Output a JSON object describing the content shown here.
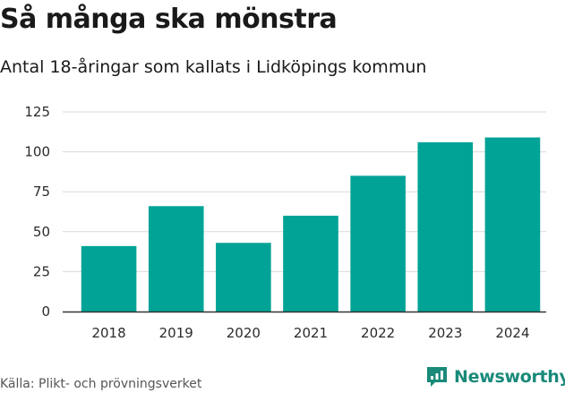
{
  "header": {
    "title": "Så många ska mönstra",
    "subtitle": "Antal 18-åringar som kallats i Lidköpings kommun"
  },
  "footer": {
    "source": "Källa: Plikt- och prövningsverket",
    "brand": "Newsworthy"
  },
  "colors": {
    "bar": "#00a396",
    "grid": "#d9d9d9",
    "axis": "#333333",
    "brand": "#1a8a7a"
  },
  "chart_data": {
    "type": "bar",
    "title": "Så många ska mönstra",
    "subtitle": "Antal 18-åringar som kallats i Lidköpings kommun",
    "xlabel": "",
    "ylabel": "",
    "categories": [
      "2018",
      "2019",
      "2020",
      "2021",
      "2022",
      "2023",
      "2024"
    ],
    "values": [
      41,
      66,
      43,
      60,
      85,
      106,
      109
    ],
    "ylim": [
      0,
      125
    ],
    "yticks": [
      0,
      25,
      50,
      75,
      100,
      125
    ],
    "grid": true,
    "legend": "none"
  }
}
